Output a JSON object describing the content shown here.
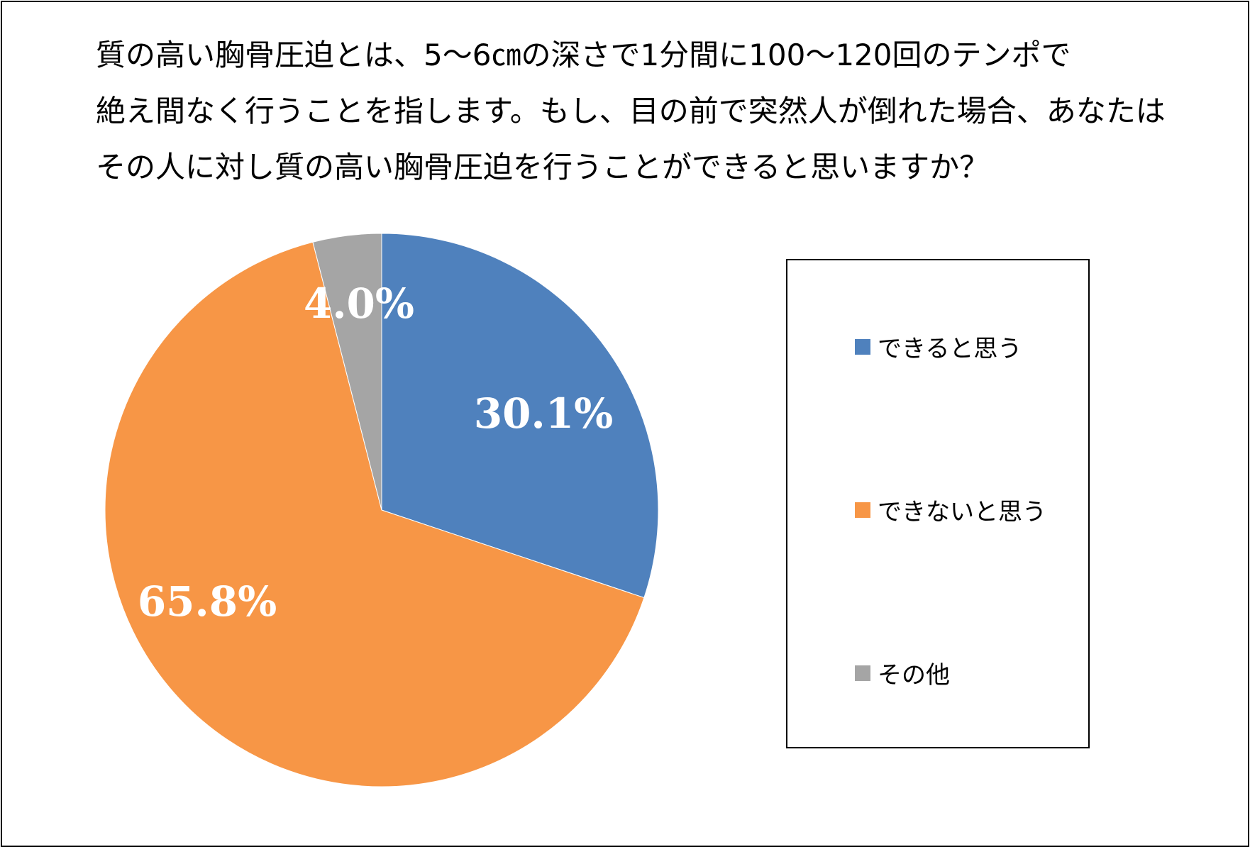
{
  "chart_data": {
    "type": "pie",
    "title_lines": [
      "質の高い胸骨圧迫とは、5～6㎝の深さで1分間に100～120回のテンポで",
      "絶え間なく行うことを指します。もし、目の前で突然人が倒れた場合、あなたは",
      "その人に対し質の高い胸骨圧迫を行うことができると思いますか？"
    ],
    "slices": [
      {
        "label": "できると思う",
        "value": 30.1,
        "value_label": "30.1%",
        "color": "#4F81BD"
      },
      {
        "label": "できないと思う",
        "value": 65.8,
        "value_label": "65.8%",
        "color": "#F79646"
      },
      {
        "label": "その他",
        "value": 4.0,
        "value_label": "4.0%",
        "color": "#A5A5A5"
      }
    ],
    "start": "12 o'clock, clockwise",
    "legend_position": "right"
  }
}
